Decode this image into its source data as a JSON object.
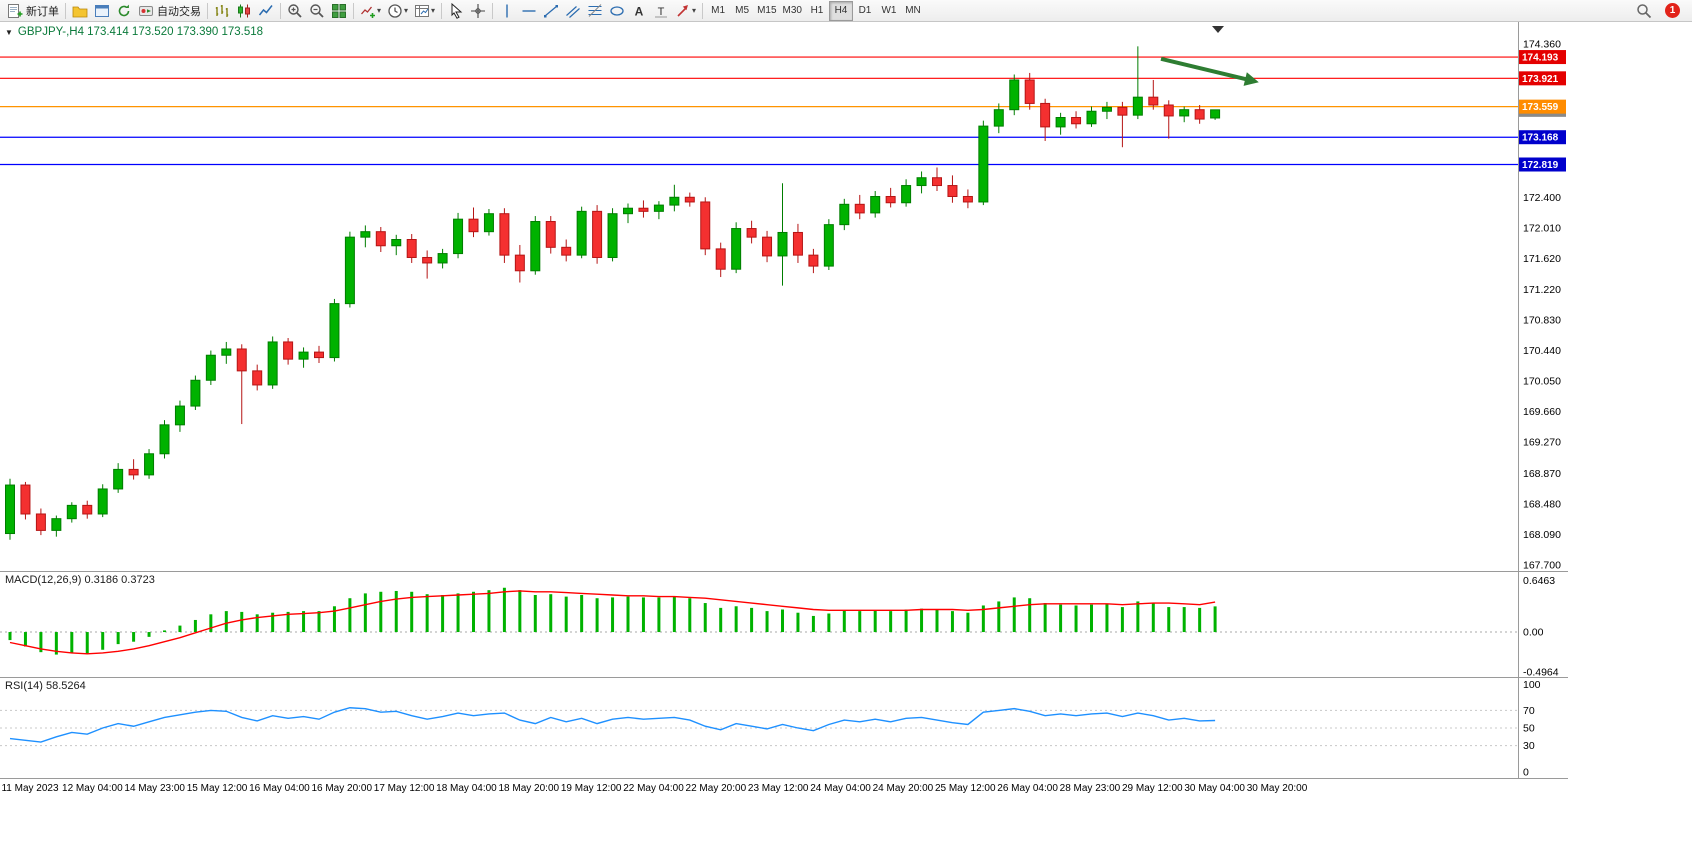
{
  "toolbar": {
    "new_order_label": "新订单",
    "auto_trading_label": "自动交易",
    "timeframes": [
      "M1",
      "M5",
      "M15",
      "M30",
      "H1",
      "H4",
      "D1",
      "W1",
      "MN"
    ],
    "active_timeframe": "H4",
    "notification_count": "1"
  },
  "chart": {
    "title_line": "GBPJPY-,H4 173.414 173.520 173.390 173.518",
    "macd_label": "MACD(12,26,9) 0.3186 0.3723",
    "rsi_label": "RSI(14) 58.5264"
  },
  "colors": {
    "bull": "#00b200",
    "bull_border": "#007d00",
    "bear": "#f43030",
    "bear_border": "#b51515",
    "macd_hist": "#00b200",
    "macd_signal": "#ff0000",
    "rsi_line": "#1e90ff",
    "grid": "#c8c8c8",
    "separator": "#9a9a9a"
  },
  "chart_data": {
    "type": "candlestick",
    "symbol": "GBPJPY-",
    "timeframe": "H4",
    "current_ohlc": {
      "open": 173.414,
      "high": 173.52,
      "low": 173.39,
      "close": 173.518
    },
    "ylim": [
      167.7,
      174.5
    ],
    "price_axis_ticks": [
      "174.360",
      "172.400",
      "172.010",
      "171.620",
      "171.220",
      "170.830",
      "170.440",
      "170.050",
      "169.660",
      "169.270",
      "168.870",
      "168.480",
      "168.090",
      "167.700"
    ],
    "time_axis_labels": [
      "11 May 2023",
      "12 May 04:00",
      "14 May 23:00",
      "15 May 12:00",
      "16 May 04:00",
      "16 May 20:00",
      "17 May 12:00",
      "18 May 04:00",
      "18 May 20:00",
      "19 May 12:00",
      "22 May 04:00",
      "22 May 20:00",
      "23 May 12:00",
      "24 May 04:00",
      "24 May 20:00",
      "25 May 12:00",
      "26 May 04:00",
      "28 May 23:00",
      "29 May 12:00",
      "30 May 04:00",
      "30 May 20:00"
    ],
    "levels": [
      {
        "price": 174.193,
        "label": "174.193",
        "color": "#ff0000",
        "badge": "#e40000"
      },
      {
        "price": 173.921,
        "label": "173.921",
        "color": "#ff0000",
        "badge": "#e40000"
      },
      {
        "price": 173.559,
        "label": "173.559",
        "color": "#ff9400",
        "badge": "#ff8c00"
      },
      {
        "price": 173.168,
        "label": "173.168",
        "color": "#0000ff",
        "badge": "#0000cc"
      },
      {
        "price": 172.819,
        "label": "172.819",
        "color": "#0000ff",
        "badge": "#0000cc"
      }
    ],
    "current_price_badge": {
      "price": 173.518,
      "label": "173.518",
      "badge": "#8a8a8a"
    },
    "annotation_arrow": {
      "from_index": 74.5,
      "from_price": 174.17,
      "to_index": 80.2,
      "to_price": 173.9,
      "color": "#2e7d32"
    },
    "candles_ohlc": [
      [
        168.1,
        168.8,
        168.02,
        168.72
      ],
      [
        168.72,
        168.76,
        168.28,
        168.35
      ],
      [
        168.35,
        168.42,
        168.08,
        168.14
      ],
      [
        168.14,
        168.33,
        168.06,
        168.29
      ],
      [
        168.29,
        168.5,
        168.24,
        168.46
      ],
      [
        168.46,
        168.52,
        168.29,
        168.35
      ],
      [
        168.35,
        168.73,
        168.31,
        168.67
      ],
      [
        168.67,
        169.0,
        168.62,
        168.92
      ],
      [
        168.92,
        169.05,
        168.79,
        168.85
      ],
      [
        168.85,
        169.18,
        168.8,
        169.12
      ],
      [
        169.12,
        169.55,
        169.06,
        169.49
      ],
      [
        169.49,
        169.8,
        169.4,
        169.73
      ],
      [
        169.73,
        170.12,
        169.68,
        170.06
      ],
      [
        170.06,
        170.44,
        170.0,
        170.38
      ],
      [
        170.38,
        170.55,
        170.27,
        170.46
      ],
      [
        170.46,
        170.52,
        169.5,
        170.18
      ],
      [
        170.18,
        170.26,
        169.93,
        170.0
      ],
      [
        170.0,
        170.62,
        169.95,
        170.55
      ],
      [
        170.55,
        170.6,
        170.26,
        170.33
      ],
      [
        170.33,
        170.48,
        170.22,
        170.42
      ],
      [
        170.42,
        170.5,
        170.28,
        170.35
      ],
      [
        170.35,
        171.1,
        170.3,
        171.04
      ],
      [
        171.04,
        171.96,
        170.99,
        171.89
      ],
      [
        171.89,
        172.04,
        171.76,
        171.96
      ],
      [
        171.96,
        172.02,
        171.7,
        171.78
      ],
      [
        171.78,
        171.92,
        171.66,
        171.86
      ],
      [
        171.86,
        171.93,
        171.56,
        171.63
      ],
      [
        171.63,
        171.72,
        171.36,
        171.56
      ],
      [
        171.56,
        171.74,
        171.49,
        171.68
      ],
      [
        171.68,
        172.2,
        171.62,
        172.12
      ],
      [
        172.12,
        172.27,
        171.89,
        171.96
      ],
      [
        171.96,
        172.25,
        171.91,
        172.19
      ],
      [
        172.19,
        172.26,
        171.56,
        171.66
      ],
      [
        171.66,
        171.79,
        171.31,
        171.46
      ],
      [
        171.46,
        172.16,
        171.41,
        172.09
      ],
      [
        172.09,
        172.16,
        171.68,
        171.76
      ],
      [
        171.76,
        171.86,
        171.58,
        171.66
      ],
      [
        171.66,
        172.28,
        171.62,
        172.22
      ],
      [
        172.22,
        172.3,
        171.55,
        171.63
      ],
      [
        171.63,
        172.26,
        171.58,
        172.19
      ],
      [
        172.19,
        172.32,
        172.07,
        172.26
      ],
      [
        172.26,
        172.36,
        172.14,
        172.22
      ],
      [
        172.22,
        172.35,
        172.12,
        172.3
      ],
      [
        172.3,
        172.56,
        172.22,
        172.4
      ],
      [
        172.4,
        172.46,
        172.28,
        172.34
      ],
      [
        172.34,
        172.4,
        171.66,
        171.74
      ],
      [
        171.74,
        171.82,
        171.38,
        171.48
      ],
      [
        171.48,
        172.08,
        171.43,
        172.0
      ],
      [
        172.0,
        172.1,
        171.81,
        171.89
      ],
      [
        171.89,
        171.97,
        171.57,
        171.65
      ],
      [
        171.65,
        172.58,
        171.27,
        171.95
      ],
      [
        171.95,
        172.06,
        171.56,
        171.66
      ],
      [
        171.66,
        171.74,
        171.43,
        171.52
      ],
      [
        171.52,
        172.12,
        171.47,
        172.05
      ],
      [
        172.05,
        172.38,
        171.98,
        172.31
      ],
      [
        172.31,
        172.43,
        172.12,
        172.2
      ],
      [
        172.2,
        172.48,
        172.14,
        172.41
      ],
      [
        172.41,
        172.52,
        172.27,
        172.33
      ],
      [
        172.33,
        172.63,
        172.28,
        172.55
      ],
      [
        172.55,
        172.73,
        172.45,
        172.65
      ],
      [
        172.65,
        172.78,
        172.48,
        172.55
      ],
      [
        172.55,
        172.68,
        172.33,
        172.41
      ],
      [
        172.41,
        172.5,
        172.26,
        172.34
      ],
      [
        172.34,
        173.38,
        172.3,
        173.31
      ],
      [
        173.31,
        173.6,
        173.22,
        173.52
      ],
      [
        173.52,
        173.97,
        173.45,
        173.9
      ],
      [
        173.9,
        173.99,
        173.52,
        173.6
      ],
      [
        173.6,
        173.66,
        173.12,
        173.3
      ],
      [
        173.3,
        173.48,
        173.2,
        173.42
      ],
      [
        173.42,
        173.5,
        173.28,
        173.34
      ],
      [
        173.34,
        173.56,
        173.3,
        173.5
      ],
      [
        173.5,
        173.62,
        173.4,
        173.55
      ],
      [
        173.55,
        173.62,
        173.04,
        173.45
      ],
      [
        173.45,
        174.33,
        173.4,
        173.68
      ],
      [
        173.68,
        173.9,
        173.52,
        173.58
      ],
      [
        173.58,
        173.64,
        173.15,
        173.44
      ],
      [
        173.44,
        173.56,
        173.36,
        173.52
      ],
      [
        173.52,
        173.58,
        173.34,
        173.4
      ],
      [
        173.414,
        173.52,
        173.39,
        173.518
      ]
    ],
    "macd": {
      "params": "12,26,9",
      "value_main": 0.3186,
      "value_signal": 0.3723,
      "axis_labels": [
        "0.6463",
        "0.00",
        "-0.4964"
      ],
      "axis_max": 0.6463,
      "axis_min": -0.4964,
      "hist": [
        -0.1,
        -0.18,
        -0.25,
        -0.28,
        -0.26,
        -0.27,
        -0.22,
        -0.15,
        -0.12,
        -0.06,
        0.02,
        0.08,
        0.15,
        0.22,
        0.26,
        0.25,
        0.22,
        0.24,
        0.25,
        0.26,
        0.26,
        0.32,
        0.42,
        0.48,
        0.5,
        0.51,
        0.5,
        0.47,
        0.46,
        0.48,
        0.5,
        0.52,
        0.55,
        0.52,
        0.46,
        0.47,
        0.44,
        0.46,
        0.42,
        0.43,
        0.44,
        0.43,
        0.43,
        0.44,
        0.42,
        0.36,
        0.3,
        0.32,
        0.3,
        0.26,
        0.28,
        0.24,
        0.2,
        0.23,
        0.27,
        0.26,
        0.27,
        0.26,
        0.28,
        0.29,
        0.28,
        0.26,
        0.24,
        0.33,
        0.38,
        0.43,
        0.42,
        0.36,
        0.34,
        0.33,
        0.34,
        0.35,
        0.31,
        0.38,
        0.36,
        0.31,
        0.31,
        0.3,
        0.3186
      ],
      "signal": [
        -0.13,
        -0.17,
        -0.21,
        -0.24,
        -0.26,
        -0.27,
        -0.26,
        -0.24,
        -0.21,
        -0.17,
        -0.12,
        -0.07,
        -0.01,
        0.05,
        0.11,
        0.15,
        0.18,
        0.2,
        0.22,
        0.23,
        0.24,
        0.26,
        0.3,
        0.34,
        0.38,
        0.41,
        0.43,
        0.44,
        0.45,
        0.46,
        0.47,
        0.48,
        0.5,
        0.51,
        0.5,
        0.5,
        0.49,
        0.48,
        0.47,
        0.46,
        0.45,
        0.45,
        0.44,
        0.44,
        0.43,
        0.42,
        0.4,
        0.38,
        0.36,
        0.34,
        0.32,
        0.3,
        0.28,
        0.27,
        0.27,
        0.27,
        0.27,
        0.27,
        0.27,
        0.28,
        0.28,
        0.28,
        0.27,
        0.28,
        0.3,
        0.32,
        0.34,
        0.35,
        0.35,
        0.35,
        0.35,
        0.35,
        0.34,
        0.35,
        0.36,
        0.36,
        0.35,
        0.34,
        0.3723
      ]
    },
    "rsi": {
      "period": 14,
      "value": 58.5264,
      "axis_labels": [
        "100",
        "70",
        "50",
        "30",
        "0"
      ],
      "level_lines": [
        30,
        50,
        70
      ],
      "values": [
        38,
        36,
        34,
        40,
        45,
        43,
        50,
        55,
        52,
        57,
        62,
        65,
        68,
        70,
        69,
        62,
        58,
        64,
        61,
        63,
        60,
        68,
        73,
        72,
        68,
        69,
        64,
        60,
        63,
        67,
        64,
        66,
        67,
        59,
        55,
        62,
        57,
        61,
        55,
        60,
        62,
        60,
        61,
        62,
        59,
        52,
        48,
        55,
        52,
        49,
        54,
        50,
        47,
        54,
        59,
        57,
        60,
        57,
        61,
        62,
        59,
        56,
        54,
        68,
        70,
        72,
        69,
        64,
        66,
        64,
        66,
        67,
        63,
        67,
        64,
        59,
        61,
        58,
        58.5264
      ]
    }
  }
}
